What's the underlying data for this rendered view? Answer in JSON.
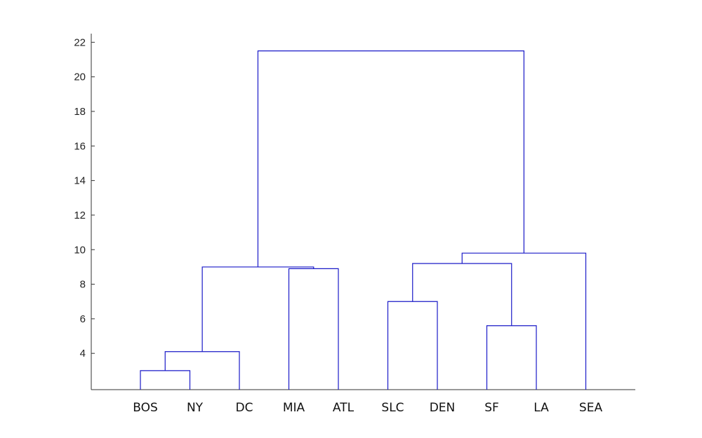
{
  "chart_data": {
    "type": "dendrogram",
    "title": "",
    "xlabel": "",
    "ylabel": "",
    "ylim": [
      1.9,
      22.5
    ],
    "yticks": [
      4,
      6,
      8,
      10,
      12,
      14,
      16,
      18,
      20,
      22
    ],
    "leaves": [
      "BOS",
      "NY",
      "DC",
      "MIA",
      "ATL",
      "SLC",
      "DEN",
      "SF",
      "LA",
      "SEA"
    ],
    "link_color": "#1a1ac8",
    "links": [
      {
        "left": "BOS",
        "right": "NY",
        "height": 3.0
      },
      {
        "left": "BOS+NY",
        "right": "DC",
        "height": 4.1
      },
      {
        "left": "MIA",
        "right": "ATL",
        "height": 8.9
      },
      {
        "left": "BOS+NY+DC",
        "right": "MIA+ATL",
        "height": 9.0
      },
      {
        "left": "SLC",
        "right": "DEN",
        "height": 7.0
      },
      {
        "left": "SF",
        "right": "LA",
        "height": 5.6
      },
      {
        "left": "SLC+DEN",
        "right": "SF+LA",
        "height": 9.2
      },
      {
        "left": "SLC+DEN+SF+LA",
        "right": "SEA",
        "height": 9.8
      },
      {
        "left": "BOS+NY+DC+MIA+ATL",
        "right": "SLC+DEN+SF+LA+SEA",
        "height": 21.5
      }
    ]
  }
}
